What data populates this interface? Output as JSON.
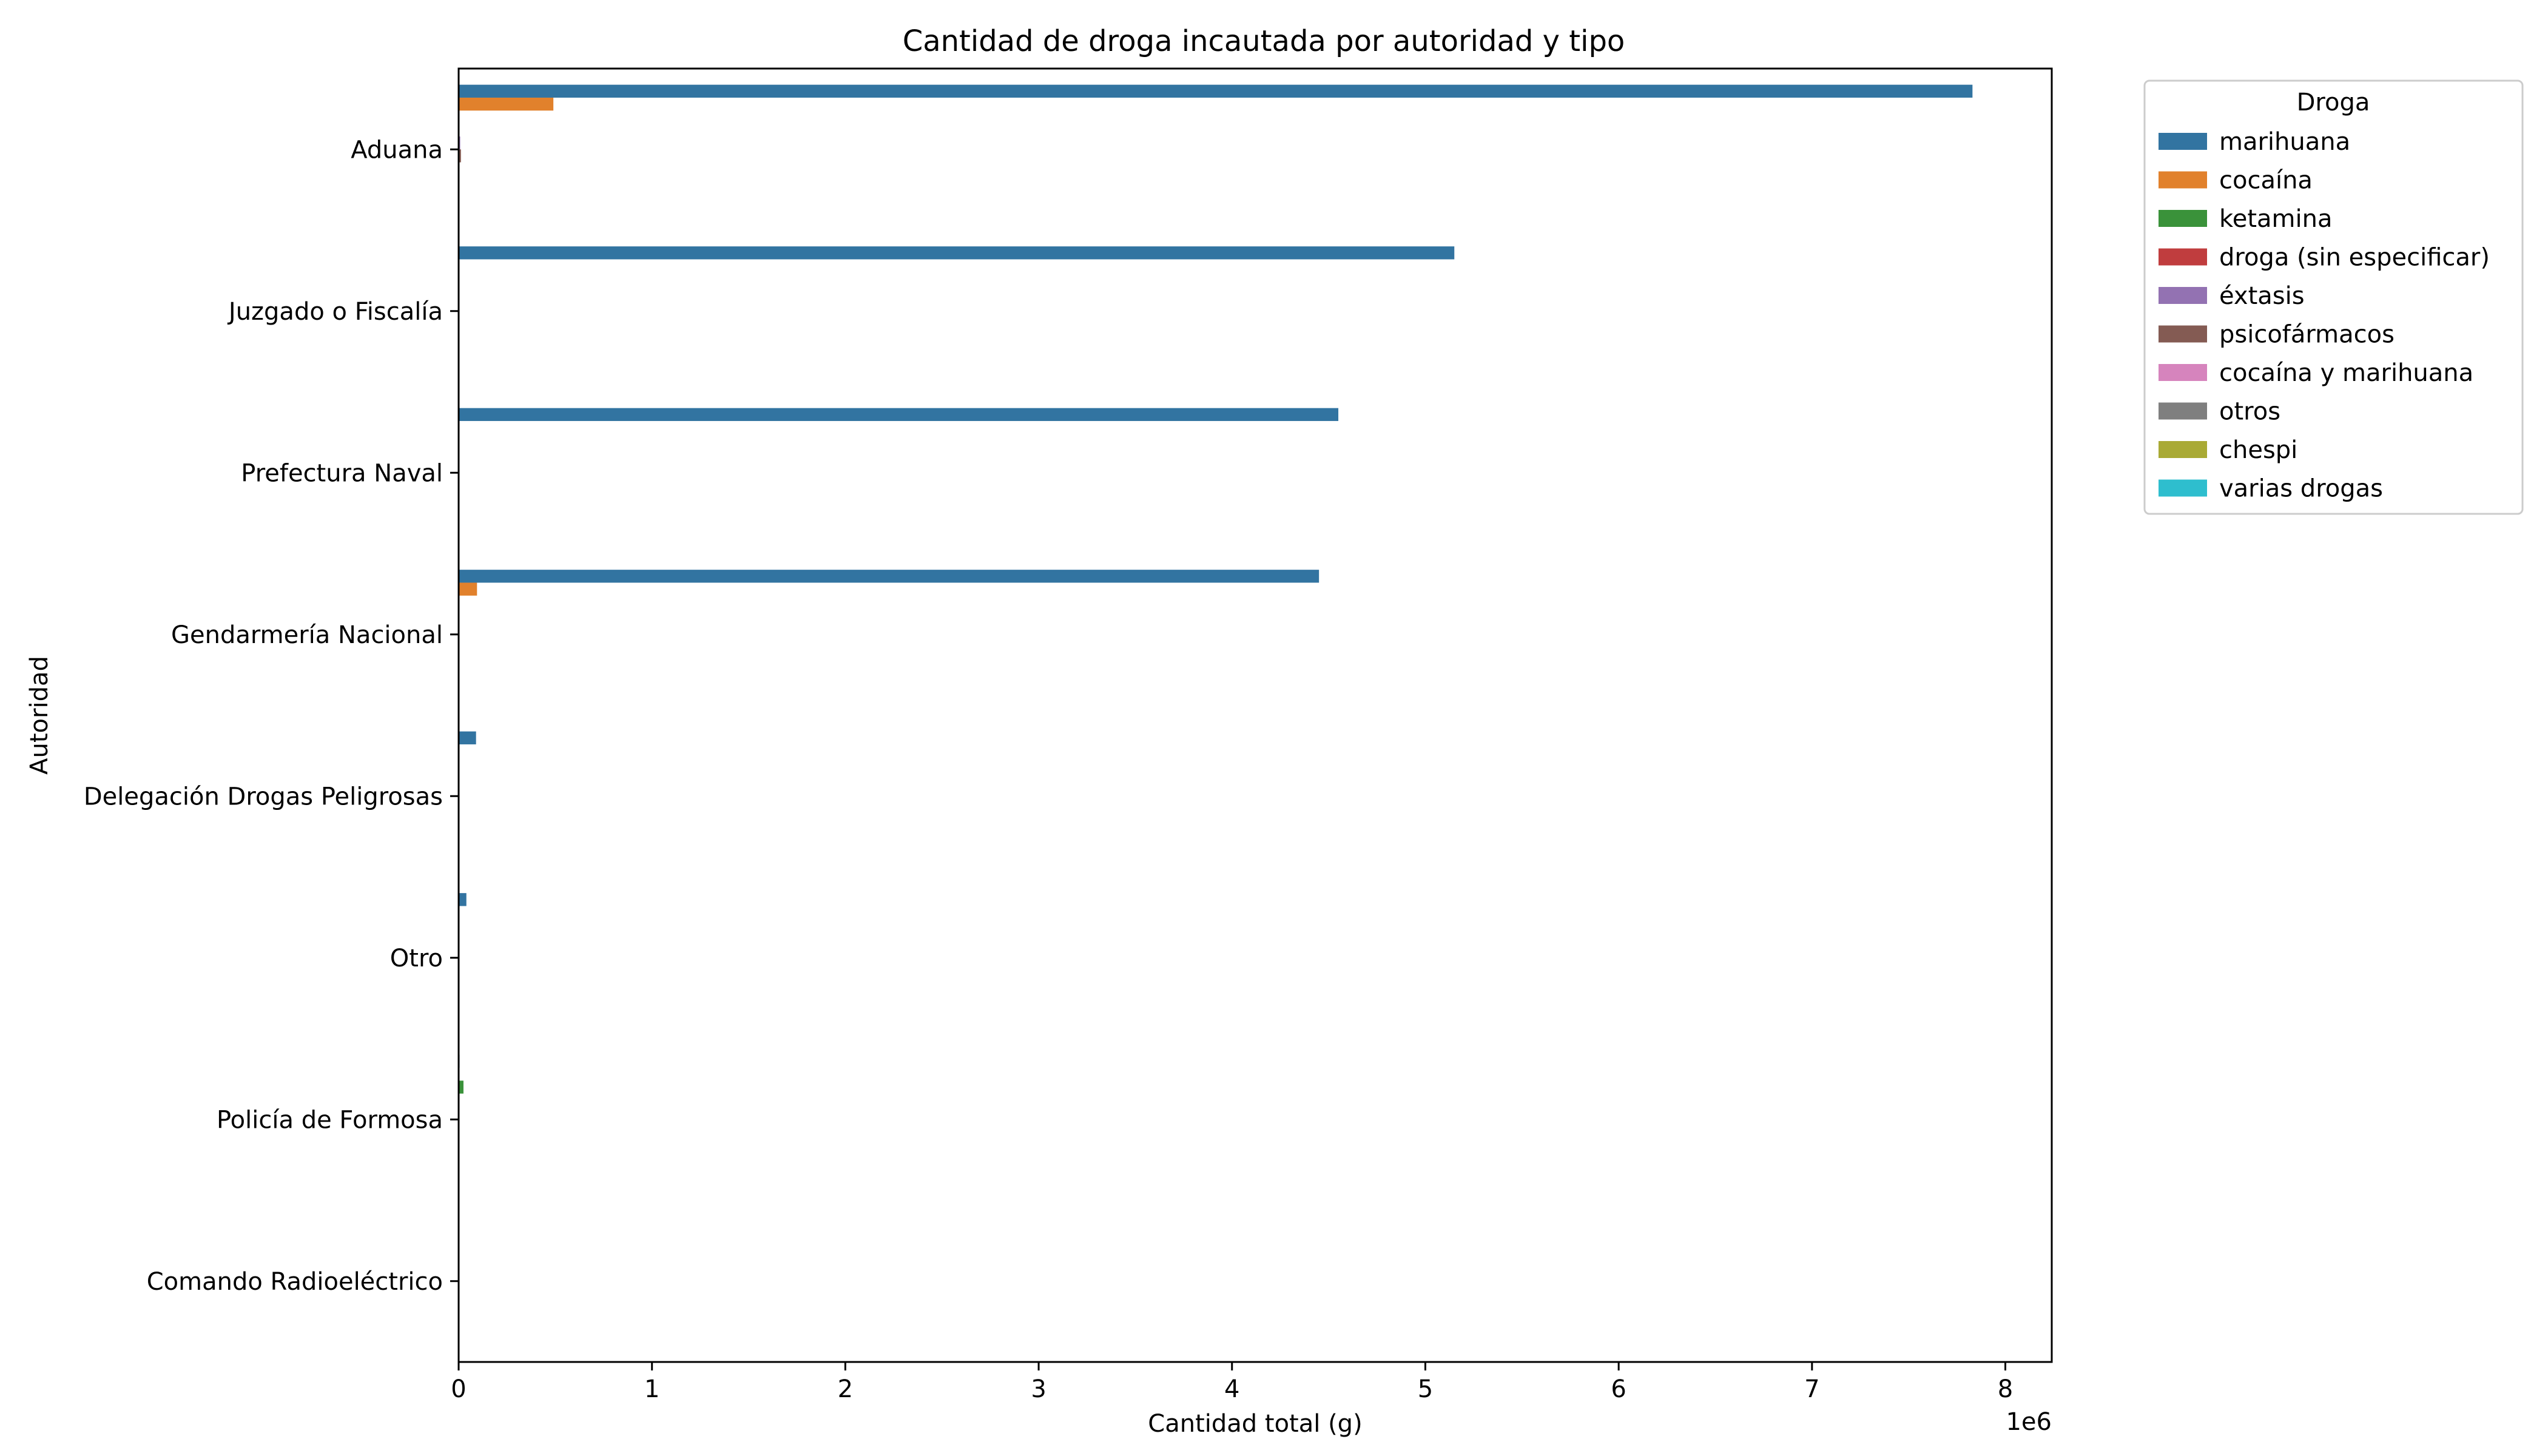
{
  "chart_data": {
    "type": "bar",
    "orientation": "horizontal",
    "title": "Cantidad de droga incautada por autoridad y tipo",
    "xlabel": "Cantidad total (g)",
    "ylabel": "Autoridad",
    "x_offset_text": "1e6",
    "xlim": [
      0,
      8240000
    ],
    "x_ticks": [
      0,
      1000000,
      2000000,
      3000000,
      4000000,
      5000000,
      6000000,
      7000000,
      8000000
    ],
    "x_tick_labels": [
      "0",
      "1",
      "2",
      "3",
      "4",
      "5",
      "6",
      "7",
      "8"
    ],
    "grid": false,
    "legend_title": "Droga",
    "legend_position": "outside-top-right",
    "categories": [
      "Aduana",
      "Juzgado o Fiscalía",
      "Prefectura Naval",
      "Gendarmería Nacional",
      "Delegación Drogas Peligrosas",
      "Otro",
      "Policía de Formosa",
      "Comando Radioeléctrico"
    ],
    "series": [
      {
        "name": "marihuana",
        "color": "#3274a1",
        "values": [
          7830000,
          5150000,
          4550000,
          4450000,
          90000,
          40000,
          5000,
          2000
        ]
      },
      {
        "name": "cocaína",
        "color": "#e1812c",
        "values": [
          490000,
          3000,
          2000,
          95000,
          3000,
          2000,
          3000,
          500
        ]
      },
      {
        "name": "ketamina",
        "color": "#3a923a",
        "values": [
          2000,
          0,
          0,
          0,
          0,
          0,
          25000,
          0
        ]
      },
      {
        "name": "droga (sin especificar)",
        "color": "#c03d3e",
        "values": [
          4000,
          500,
          0,
          500,
          0,
          0,
          2000,
          0
        ]
      },
      {
        "name": "éxtasis",
        "color": "#9372b2",
        "values": [
          8000,
          0,
          0,
          0,
          0,
          0,
          0,
          0
        ]
      },
      {
        "name": "psicofármacos",
        "color": "#845b53",
        "values": [
          12000,
          0,
          0,
          0,
          0,
          0,
          0,
          0
        ]
      },
      {
        "name": "cocaína y marihuana",
        "color": "#d684bd",
        "values": [
          0,
          0,
          0,
          0,
          0,
          0,
          0,
          0
        ]
      },
      {
        "name": "otros",
        "color": "#7f7f7f",
        "values": [
          0,
          0,
          0,
          0,
          0,
          0,
          0,
          0
        ]
      },
      {
        "name": "chespi",
        "color": "#a9aa35",
        "values": [
          0,
          0,
          0,
          0,
          0,
          0,
          0,
          0
        ]
      },
      {
        "name": "varias drogas",
        "color": "#2ebece",
        "values": [
          0,
          0,
          0,
          0,
          0,
          0,
          0,
          0
        ]
      }
    ]
  }
}
